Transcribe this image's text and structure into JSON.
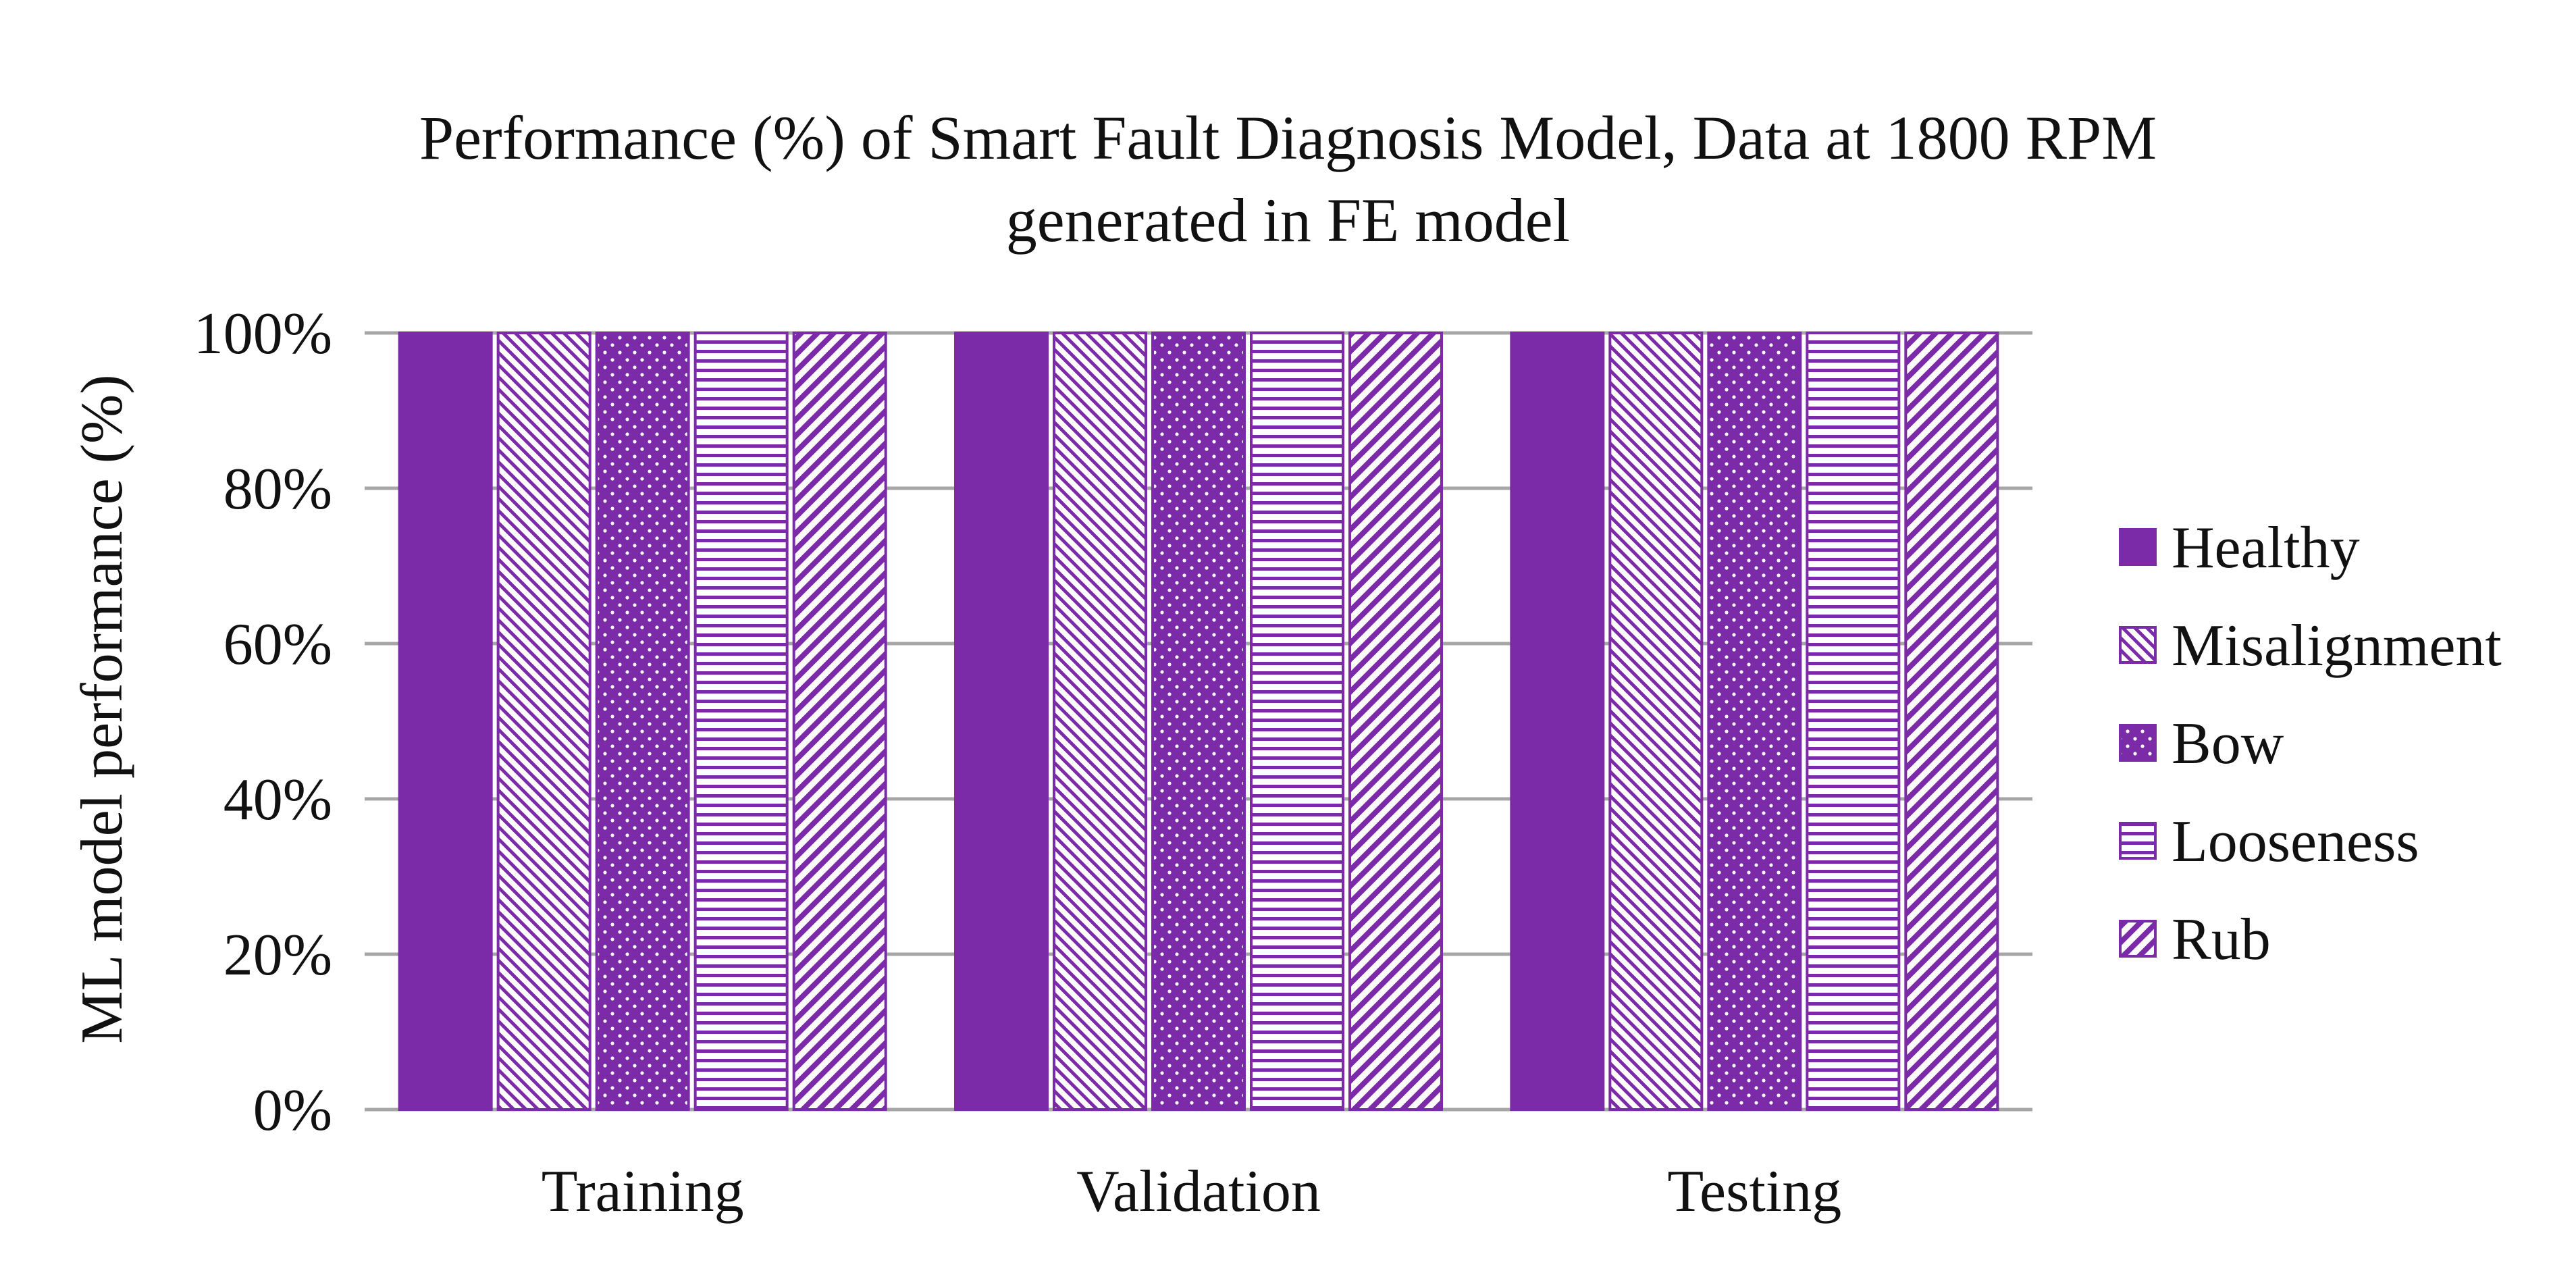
{
  "chart_data": {
    "type": "bar",
    "title": "Performance (%) of Smart Fault Diagnosis Model, Data at 1800 RPM",
    "subtitle": "generated in FE model",
    "xlabel": "",
    "ylabel": "ML model performance (%)",
    "ylim": [
      0,
      100
    ],
    "yticks": [
      0,
      20,
      40,
      60,
      80,
      100
    ],
    "ytick_labels": [
      "0%",
      "20%",
      "40%",
      "60%",
      "80%",
      "100%"
    ],
    "grid": true,
    "legend_position": "right",
    "categories": [
      "Training",
      "Validation",
      "Testing"
    ],
    "series": [
      {
        "name": "Healthy",
        "values": [
          100,
          100,
          100
        ],
        "pattern": "solid"
      },
      {
        "name": "Misalignment",
        "values": [
          100,
          100,
          100
        ],
        "pattern": "wide-downward-diagonal"
      },
      {
        "name": "Bow",
        "values": [
          100,
          100,
          100
        ],
        "pattern": "dots"
      },
      {
        "name": "Looseness",
        "values": [
          100,
          100,
          100
        ],
        "pattern": "horizontal-lines"
      },
      {
        "name": "Rub",
        "values": [
          100,
          100,
          100
        ],
        "pattern": "upward-diagonal"
      }
    ],
    "colors": {
      "bar": "#7b2aa8",
      "grid": "#a6a6a6",
      "axis": "#a6a6a6",
      "text": "#111111"
    }
  }
}
